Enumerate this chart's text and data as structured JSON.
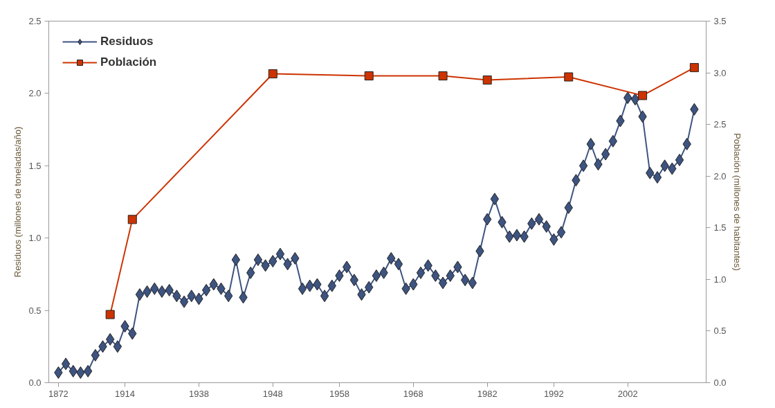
{
  "chart_data": {
    "type": "line",
    "ylabel": "Residuos (millones de toneladas/año)",
    "y2label": "Población (millones de habitantes)",
    "categories": [
      "1872",
      null,
      null,
      null,
      null,
      null,
      null,
      null,
      null,
      "1914",
      null,
      null,
      null,
      null,
      null,
      null,
      null,
      null,
      null,
      "1938",
      null,
      null,
      null,
      null,
      null,
      null,
      null,
      null,
      null,
      "1948",
      null,
      null,
      null,
      null,
      null,
      null,
      null,
      null,
      "1958",
      null,
      null,
      null,
      null,
      null,
      null,
      null,
      null,
      null,
      "1968",
      null,
      null,
      null,
      null,
      null,
      null,
      null,
      null,
      null,
      "1982",
      null,
      null,
      null,
      null,
      null,
      null,
      null,
      null,
      "1992",
      null,
      null,
      null,
      null,
      null,
      null,
      null,
      null,
      null,
      "2002",
      null,
      null,
      null,
      null,
      null,
      null,
      null,
      null,
      null
    ],
    "ylim": [
      0,
      2.5
    ],
    "yticks": [
      {
        "value": 0,
        "label": "0.0"
      },
      {
        "value": 0.5,
        "label": "0.5"
      },
      {
        "value": 1,
        "label": "1.0"
      },
      {
        "value": 1.5,
        "label": "1.5"
      },
      {
        "value": 2,
        "label": "2.0"
      },
      {
        "value": 2.5,
        "label": "2.5"
      }
    ],
    "y2lim": [
      0,
      3.5
    ],
    "y2ticks": [
      {
        "value": 0,
        "label": "0.0"
      },
      {
        "value": 0.5,
        "label": "0.5"
      },
      {
        "value": 1,
        "label": "1.0"
      },
      {
        "value": 1.5,
        "label": "1.5"
      },
      {
        "value": 2,
        "label": "2.0"
      },
      {
        "value": 2.5,
        "label": "2.5"
      },
      {
        "value": 3,
        "label": "3.0"
      },
      {
        "value": 3.5,
        "label": "3.5"
      }
    ],
    "grid": false,
    "legend": "top left",
    "line_style": "solid",
    "series": [
      {
        "name": "Residuos",
        "color": "#3d5380",
        "marker": "diamond",
        "values": [
          0.07,
          0.13,
          0.08,
          0.07,
          0.08,
          0.19,
          0.25,
          0.3,
          0.25,
          0.39,
          0.34,
          0.61,
          0.63,
          0.65,
          0.63,
          0.64,
          0.6,
          0.56,
          0.6,
          0.58,
          0.64,
          0.68,
          0.65,
          0.6,
          0.85,
          0.59,
          0.76,
          0.85,
          0.81,
          0.84,
          0.89,
          0.82,
          0.86,
          0.65,
          0.67,
          0.68,
          0.6,
          0.67,
          0.74,
          0.8,
          0.71,
          0.61,
          0.66,
          0.74,
          0.76,
          0.86,
          0.82,
          0.65,
          0.68,
          0.76,
          0.81,
          0.74,
          0.69,
          0.74,
          0.8,
          0.71,
          0.69,
          0.91,
          1.13,
          1.27,
          1.11,
          1.01,
          1.02,
          1.01,
          1.1,
          1.13,
          1.08,
          0.99,
          1.04,
          1.21,
          1.4,
          1.5,
          1.65,
          1.51,
          1.58,
          1.67,
          1.81,
          1.97,
          1.96,
          1.84,
          1.45,
          1.42,
          1.5,
          1.48,
          1.54,
          1.65,
          1.89
        ]
      },
      {
        "name": "Población",
        "color": "#cc3300",
        "marker": "square",
        "axis": "y2",
        "values": [
          null,
          null,
          null,
          null,
          null,
          null,
          null,
          0.66,
          null,
          null,
          1.58,
          null,
          null,
          null,
          null,
          null,
          null,
          null,
          null,
          null,
          null,
          null,
          null,
          null,
          null,
          null,
          null,
          null,
          null,
          2.99,
          null,
          null,
          null,
          null,
          null,
          null,
          null,
          null,
          null,
          null,
          null,
          null,
          2.97,
          null,
          null,
          null,
          null,
          null,
          null,
          null,
          null,
          null,
          2.97,
          null,
          null,
          null,
          null,
          null,
          2.93,
          null,
          null,
          null,
          null,
          null,
          null,
          null,
          null,
          null,
          null,
          2.96,
          null,
          null,
          null,
          null,
          null,
          null,
          null,
          null,
          null,
          2.78,
          null,
          null,
          null,
          null,
          null,
          null,
          3.05
        ]
      }
    ]
  }
}
